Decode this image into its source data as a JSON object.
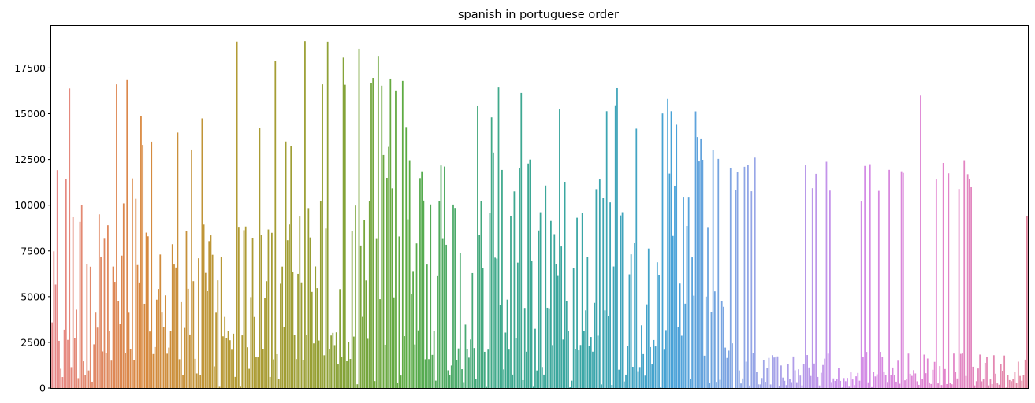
{
  "chart_data": {
    "type": "bar",
    "title": "spanish in portuguese order",
    "xlabel": "",
    "ylabel": "",
    "x_tick_labels_shown": false,
    "ylim": [
      0,
      19800
    ],
    "yticks": [
      0,
      2500,
      5000,
      7500,
      10000,
      12500,
      15000,
      17500
    ],
    "ytick_labels": [
      "0",
      "2500",
      "5000",
      "7500",
      "10000",
      "12500",
      "15000",
      "17500"
    ],
    "grid": false,
    "legend": "none",
    "palette": "husl",
    "color_stops": [
      "#e8898c",
      "#d9883f",
      "#b59a34",
      "#96a034",
      "#5bab43",
      "#3fa98a",
      "#3aa6a6",
      "#47a2d8",
      "#9ea6e8",
      "#d08cea",
      "#e284cf",
      "#e388a0"
    ],
    "frame_color": "#000000",
    "bar_count": 560,
    "envelope_note_excluded": true,
    "segments": [
      {
        "from": 0,
        "to": 0.09,
        "peak": 17800,
        "low": 12500
      },
      {
        "from": 0.09,
        "to": 0.24,
        "peak": 15000,
        "low": 9000
      },
      {
        "from": 0.24,
        "to": 0.38,
        "peak": 19000,
        "low": 14500
      },
      {
        "from": 0.38,
        "to": 0.55,
        "peak": 17000,
        "low": 13000
      },
      {
        "from": 0.55,
        "to": 0.66,
        "peak": 16300,
        "low": 12500
      },
      {
        "from": 0.66,
        "to": 0.7,
        "peak": 13900,
        "low": 10000
      },
      {
        "from": 0.7,
        "to": 1.0,
        "peak": 12600,
        "low": 2000
      }
    ],
    "values": []
  }
}
